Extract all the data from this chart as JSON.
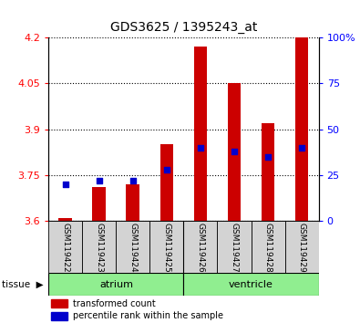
{
  "title": "GDS3625 / 1395243_at",
  "samples": [
    "GSM119422",
    "GSM119423",
    "GSM119424",
    "GSM119425",
    "GSM119426",
    "GSM119427",
    "GSM119428",
    "GSM119429"
  ],
  "atrium_color": "#90ee90",
  "ventricle_color": "#90ee90",
  "red_values": [
    3.61,
    3.71,
    3.72,
    3.85,
    4.17,
    4.05,
    3.92,
    4.2
  ],
  "blue_values_pct": [
    20,
    22,
    22,
    28,
    40,
    38,
    35,
    40
  ],
  "ymin": 3.6,
  "ymax": 4.2,
  "yticks": [
    3.6,
    3.75,
    3.9,
    4.05,
    4.2
  ],
  "right_yticks_vals": [
    0,
    25,
    50,
    75,
    100
  ],
  "right_yticks_labels": [
    "0",
    "25",
    "50",
    "75",
    "100%"
  ],
  "bar_color": "#cc0000",
  "dot_color": "#0000cc",
  "bar_bottom": 3.6,
  "bg_color": "#ffffff",
  "sample_box_color": "#d3d3d3",
  "legend_items": [
    "transformed count",
    "percentile rank within the sample"
  ]
}
